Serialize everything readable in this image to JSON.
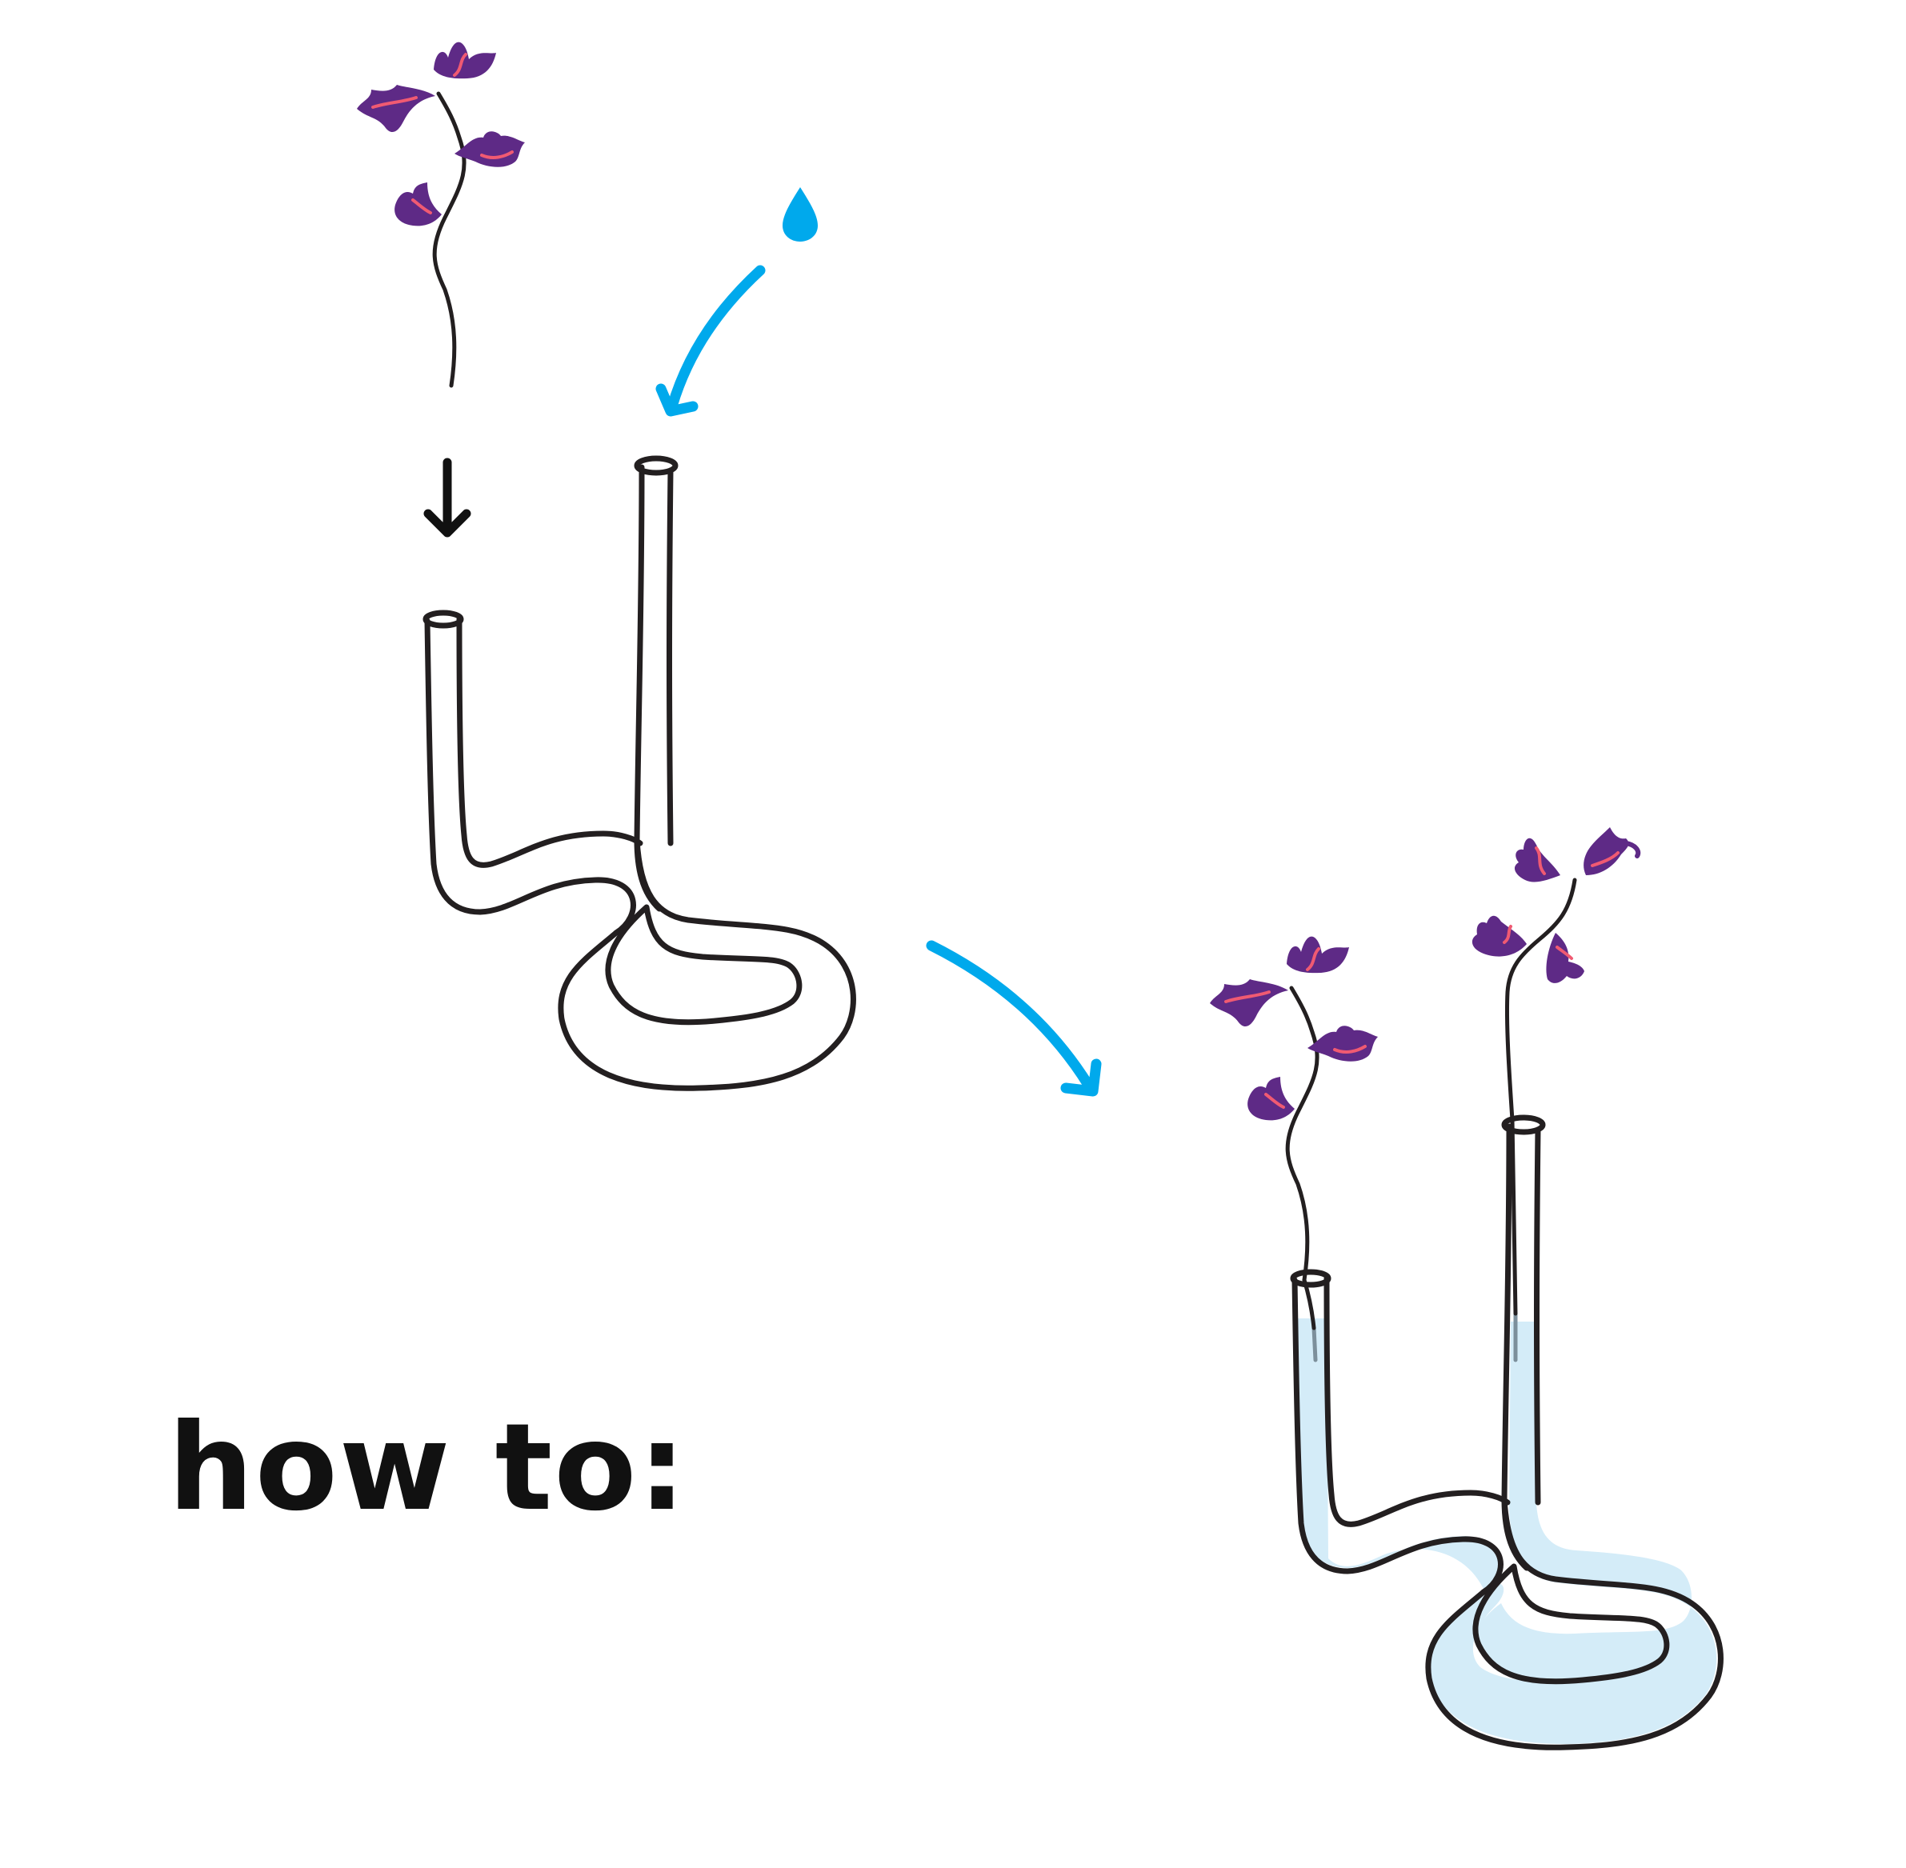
{
  "heading": "how to:",
  "colors": {
    "outline": "#231f20",
    "water_arrow": "#00a9ec",
    "water_fill": "#d4ecf8",
    "petal": "#5e2a86",
    "petal_vein": "#f05a72",
    "stem_in_water": "#7c8f9b"
  },
  "icons": {
    "water_drop": "water-drop-icon",
    "down_arrow": "arrow-down-icon",
    "curved_arrow": "curved-arrow-icon",
    "flower": "flower-stem-icon",
    "vase": "tube-vase-icon"
  }
}
